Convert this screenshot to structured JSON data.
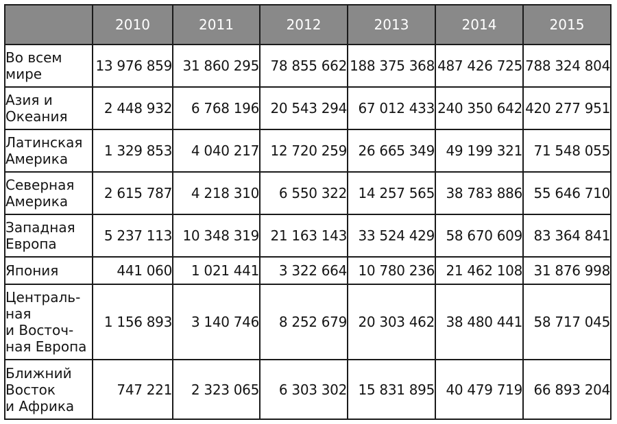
{
  "table": {
    "columns": [
      "2010",
      "2011",
      "2012",
      "2013",
      "2014",
      "2015"
    ],
    "rows": [
      {
        "label": "Во всем\nмире",
        "values": [
          "13 976 859",
          "31 860 295",
          "78 855 662",
          "188 375 368",
          "487 426 725",
          "788 324 804"
        ]
      },
      {
        "label": "Азия и\nОкеания",
        "values": [
          "2 448 932",
          "6 768 196",
          "20 543 294",
          "67 012 433",
          "240 350 642",
          "420 277 951"
        ]
      },
      {
        "label": "Латинская\nАмерика",
        "values": [
          "1 329 853",
          "4 040 217",
          "12 720 259",
          "26 665 349",
          "49 199 321",
          "71 548 055"
        ]
      },
      {
        "label": "Северная\nАмерика",
        "values": [
          "2 615 787",
          "4 218 310",
          "6 550 322",
          "14 257 565",
          "38 783 886",
          "55 646 710"
        ]
      },
      {
        "label": "Западная\nЕвропа",
        "values": [
          "5 237 113",
          "10 348 319",
          "21 163 143",
          "33 524 429",
          "58 670 609",
          "83 364 841"
        ]
      },
      {
        "label": "Япония",
        "values": [
          "441 060",
          "1 021 441",
          "3 322 664",
          "10 780 236",
          "21 462 108",
          "31 876 998"
        ]
      },
      {
        "label": "Централь-\nная\nи Восточ-\nная Европа",
        "values": [
          "1 156 893",
          "3 140 746",
          "8 252 679",
          "20 303 462",
          "38 480 441",
          "58 717 045"
        ]
      },
      {
        "label": "Ближний\nВосток\nи Африка",
        "values": [
          "747 221",
          "2 323 065",
          "6 303 302",
          "15 831 895",
          "40 479 719",
          "66 893 204"
        ]
      }
    ]
  },
  "colors": {
    "header_bg": "#898989",
    "header_text": "#ffffff",
    "border": "#1a1a1a",
    "text": "#141414"
  }
}
